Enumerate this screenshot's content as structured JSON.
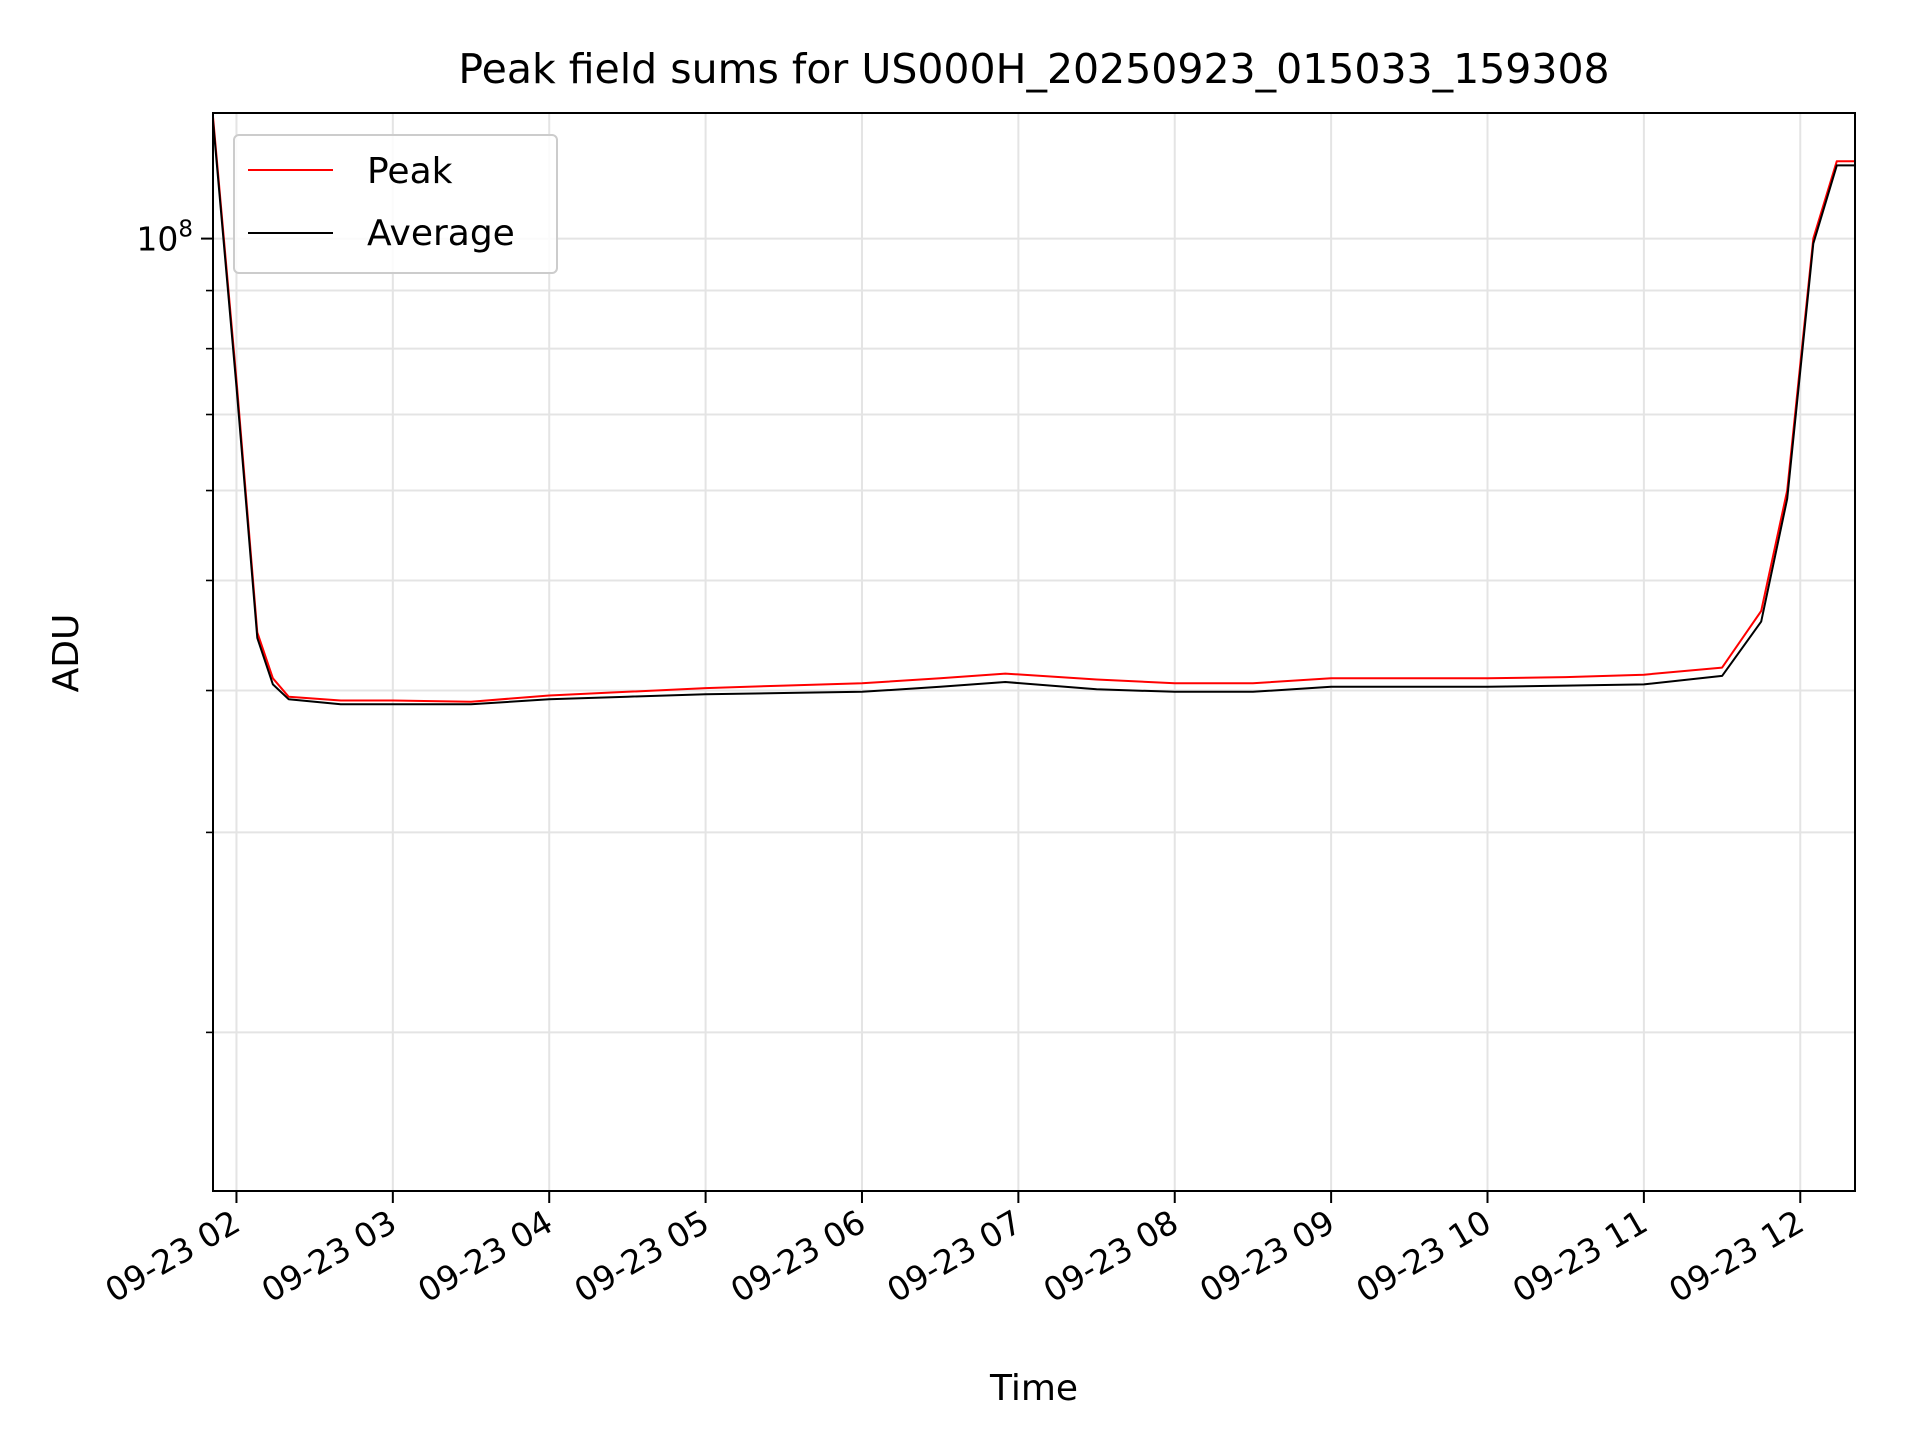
{
  "chart_data": {
    "type": "line",
    "title": "Peak field sums for US000H_20250923_015033_159308",
    "xlabel": "Time",
    "ylabel": "ADU",
    "y_scale": "log",
    "ylim": [
      14500000,
      129000000
    ],
    "xlim": [
      "09-23 01:51",
      "09-23 12:21"
    ],
    "x_ticks": [
      "09-23 02",
      "09-23 03",
      "09-23 04",
      "09-23 05",
      "09-23 06",
      "09-23 07",
      "09-23 08",
      "09-23 09",
      "09-23 10",
      "09-23 11",
      "09-23 12"
    ],
    "y_major_ticks": [
      {
        "value": 100000000,
        "label": "10",
        "exponent": "8"
      }
    ],
    "y_minor_ticks": [
      20000000,
      30000000,
      40000000,
      50000000,
      60000000,
      70000000,
      80000000,
      90000000
    ],
    "grid": true,
    "legend_position": "top-left",
    "series": [
      {
        "name": "Peak",
        "color": "#ff0000",
        "points": [
          [
            "09-23 01:51",
            128000000
          ],
          [
            "09-23 02:00",
            75000000
          ],
          [
            "09-23 02:08",
            45000000
          ],
          [
            "09-23 02:14",
            41000000
          ],
          [
            "09-23 02:20",
            39500000
          ],
          [
            "09-23 02:40",
            39200000
          ],
          [
            "09-23 03:00",
            39200000
          ],
          [
            "09-23 03:30",
            39100000
          ],
          [
            "09-23 04:00",
            39600000
          ],
          [
            "09-23 04:30",
            39900000
          ],
          [
            "09-23 05:00",
            40200000
          ],
          [
            "09-23 05:30",
            40400000
          ],
          [
            "09-23 06:00",
            40600000
          ],
          [
            "09-23 06:30",
            41000000
          ],
          [
            "09-23 06:55",
            41400000
          ],
          [
            "09-23 07:30",
            40900000
          ],
          [
            "09-23 08:00",
            40600000
          ],
          [
            "09-23 08:30",
            40600000
          ],
          [
            "09-23 09:00",
            41000000
          ],
          [
            "09-23 09:30",
            41000000
          ],
          [
            "09-23 10:00",
            41000000
          ],
          [
            "09-23 10:30",
            41100000
          ],
          [
            "09-23 11:00",
            41300000
          ],
          [
            "09-23 11:30",
            41900000
          ],
          [
            "09-23 11:45",
            47000000
          ],
          [
            "09-23 11:55",
            60000000
          ],
          [
            "09-23 12:05",
            100000000
          ],
          [
            "09-23 12:14",
            117000000
          ],
          [
            "09-23 12:21",
            117000000
          ]
        ]
      },
      {
        "name": "Average",
        "color": "#000000",
        "points": [
          [
            "09-23 01:51",
            127000000
          ],
          [
            "09-23 02:00",
            74000000
          ],
          [
            "09-23 02:08",
            44500000
          ],
          [
            "09-23 02:14",
            40500000
          ],
          [
            "09-23 02:20",
            39300000
          ],
          [
            "09-23 02:40",
            38900000
          ],
          [
            "09-23 03:00",
            38900000
          ],
          [
            "09-23 03:30",
            38900000
          ],
          [
            "09-23 04:00",
            39300000
          ],
          [
            "09-23 04:30",
            39500000
          ],
          [
            "09-23 05:00",
            39700000
          ],
          [
            "09-23 05:30",
            39800000
          ],
          [
            "09-23 06:00",
            39900000
          ],
          [
            "09-23 06:30",
            40300000
          ],
          [
            "09-23 06:55",
            40700000
          ],
          [
            "09-23 07:30",
            40100000
          ],
          [
            "09-23 08:00",
            39900000
          ],
          [
            "09-23 08:30",
            39900000
          ],
          [
            "09-23 09:00",
            40300000
          ],
          [
            "09-23 09:30",
            40300000
          ],
          [
            "09-23 10:00",
            40300000
          ],
          [
            "09-23 10:30",
            40400000
          ],
          [
            "09-23 11:00",
            40500000
          ],
          [
            "09-23 11:30",
            41200000
          ],
          [
            "09-23 11:45",
            46000000
          ],
          [
            "09-23 11:55",
            59000000
          ],
          [
            "09-23 12:05",
            99000000
          ],
          [
            "09-23 12:14",
            116000000
          ],
          [
            "09-23 12:21",
            116000000
          ]
        ]
      }
    ]
  }
}
